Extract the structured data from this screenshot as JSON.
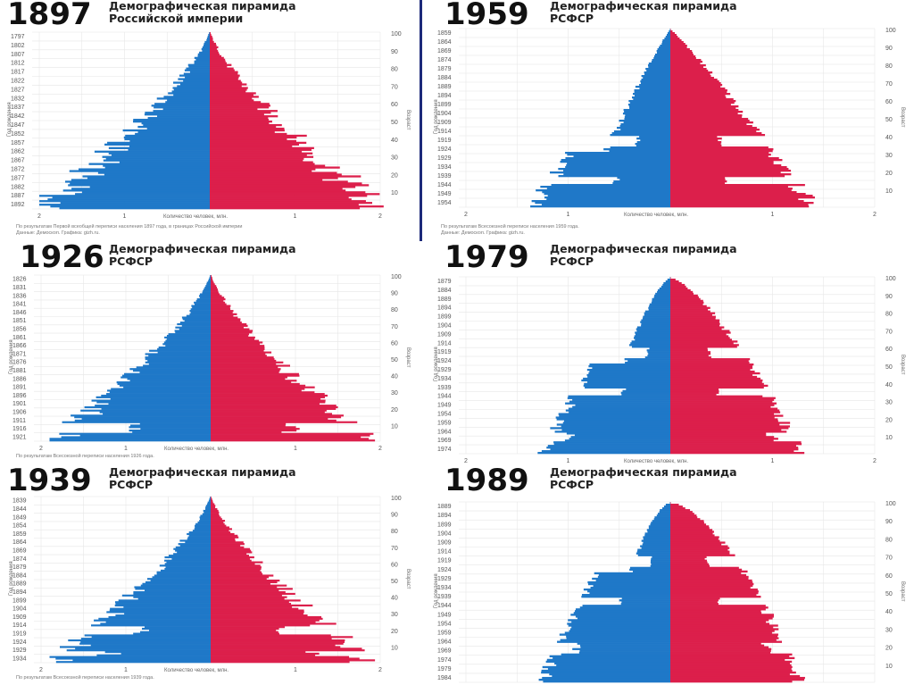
{
  "labels": {
    "xlabel": "Количество человек, млн.",
    "ylabel_left": "Год рождения",
    "ylabel_right": "Возраст",
    "age_ticks": [
      "100",
      "90",
      "80",
      "70",
      "60",
      "50",
      "40",
      "30",
      "20",
      "10"
    ],
    "x_ticks": [
      "2",
      "1",
      "1",
      "2"
    ]
  },
  "colors": {
    "male": "#1f78c8",
    "female": "#dc1f4b",
    "grid": "#e6e6e6"
  },
  "chart_data": [
    {
      "id": "p1897",
      "type": "bar",
      "orientation": "population-pyramid",
      "year_label": "1897",
      "title": "Демографическая пирамида",
      "subtitle": "Российской империи",
      "census_year": 1897,
      "birth_year_ticks": [
        "1797",
        "1802",
        "1807",
        "1812",
        "1817",
        "1822",
        "1827",
        "1832",
        "1837",
        "1842",
        "1847",
        "1852",
        "1857",
        "1862",
        "1867",
        "1872",
        "1877",
        "1882",
        "1887",
        "1892"
      ],
      "xlim": [
        -2,
        2
      ],
      "peak_million": 2.0,
      "shape": "triangle",
      "footnote": [
        "По результатам Первой всеобщей переписи населения 1897 года, в границах Российской империи",
        "Данные: Демоскоп. Графика: gizh.ru."
      ]
    },
    {
      "id": "p1959",
      "type": "bar",
      "orientation": "population-pyramid",
      "year_label": "1959",
      "title": "Демографическая пирамида",
      "subtitle": "РСФСР",
      "census_year": 1959,
      "birth_year_ticks": [
        "1859",
        "1864",
        "1869",
        "1874",
        "1879",
        "1884",
        "1889",
        "1894",
        "1899",
        "1904",
        "1909",
        "1914",
        "1919",
        "1924",
        "1929",
        "1934",
        "1939",
        "1944",
        "1949",
        "1954"
      ],
      "xlim": [
        -2,
        2
      ],
      "peak_million": 1.4,
      "shape": "ussr1959",
      "footnote": [
        "По результатам Всесоюзной переписи населения 1959 года.",
        "Данные: Демоскоп. Графика: gizh.ru."
      ]
    },
    {
      "id": "p1926",
      "type": "bar",
      "orientation": "population-pyramid",
      "year_label": "1926",
      "title": "Демографическая пирамида",
      "subtitle": "РСФСР",
      "census_year": 1926,
      "birth_year_ticks": [
        "1826",
        "1831",
        "1836",
        "1841",
        "1846",
        "1851",
        "1856",
        "1861",
        "1866",
        "1871",
        "1876",
        "1881",
        "1886",
        "1891",
        "1896",
        "1901",
        "1906",
        "1911",
        "1916",
        "1921"
      ],
      "xlim": [
        -2,
        2
      ],
      "peak_million": 1.9,
      "shape": "triangle1926",
      "footnote": [
        "По результатам Всесоюзной переписи населения 1926 года."
      ]
    },
    {
      "id": "p1979",
      "type": "bar",
      "orientation": "population-pyramid",
      "year_label": "1979",
      "title": "Демографическая пирамида",
      "subtitle": "РСФСР",
      "census_year": 1979,
      "birth_year_ticks": [
        "1879",
        "1884",
        "1889",
        "1894",
        "1899",
        "1904",
        "1909",
        "1914",
        "1919",
        "1924",
        "1929",
        "1934",
        "1939",
        "1944",
        "1949",
        "1954",
        "1959",
        "1964",
        "1969",
        "1974"
      ],
      "xlim": [
        -2,
        2
      ],
      "peak_million": 1.3,
      "shape": "ussr1979",
      "footnote": []
    },
    {
      "id": "p1939",
      "type": "bar",
      "orientation": "population-pyramid",
      "year_label": "1939",
      "title": "Демографическая пирамида",
      "subtitle": "РСФСР",
      "census_year": 1939,
      "birth_year_ticks": [
        "1839",
        "1844",
        "1849",
        "1854",
        "1859",
        "1864",
        "1869",
        "1874",
        "1879",
        "1884",
        "1889",
        "1894",
        "1899",
        "1904",
        "1909",
        "1914",
        "1919",
        "1924",
        "1929",
        "1934"
      ],
      "xlim": [
        -2,
        2
      ],
      "peak_million": 1.9,
      "shape": "ussr1939",
      "footnote": [
        "По результатам Всесоюзной переписи населения 1939 года."
      ]
    },
    {
      "id": "p1989",
      "type": "bar",
      "orientation": "population-pyramid",
      "year_label": "1989",
      "title": "Демографическая пирамида",
      "subtitle": "РСФСР",
      "census_year": 1989,
      "birth_year_ticks": [
        "1889",
        "1894",
        "1899",
        "1904",
        "1909",
        "1914",
        "1919",
        "1924",
        "1929",
        "1934",
        "1939",
        "1944",
        "1949",
        "1954",
        "1959",
        "1964",
        "1969",
        "1974",
        "1979",
        "1984"
      ],
      "xlim": [
        -2,
        2
      ],
      "peak_million": 1.3,
      "shape": "ussr1989",
      "footnote": []
    }
  ]
}
